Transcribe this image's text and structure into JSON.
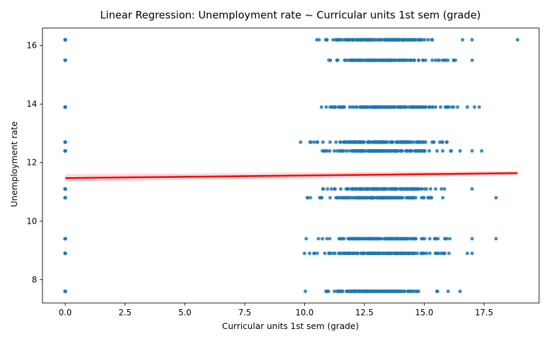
{
  "chart_data": {
    "type": "scatter",
    "title": "Linear Regression: Unemployment rate ~ Curricular units 1st sem (grade)",
    "xlabel": "Curricular units 1st sem (grade)",
    "ylabel": "Unemployment rate",
    "xlim": [
      -0.95,
      19.8
    ],
    "ylim": [
      7.2,
      16.6
    ],
    "xticks": [
      0.0,
      2.5,
      5.0,
      7.5,
      10.0,
      12.5,
      15.0,
      17.5
    ],
    "xtick_labels": [
      "0.0",
      "2.5",
      "5.0",
      "7.5",
      "10.0",
      "12.5",
      "15.0",
      "17.5"
    ],
    "yticks": [
      8,
      10,
      12,
      14,
      16
    ],
    "ytick_labels": [
      "8",
      "10",
      "12",
      "14",
      "16"
    ],
    "grid": false,
    "point_color": "#1f77b4",
    "line_color": "#ff0000",
    "band_color": "#ffc0c0",
    "regression": {
      "x": [
        0.0,
        18.9
      ],
      "y": [
        11.47,
        11.64
      ],
      "ci_low": [
        11.35,
        11.57
      ],
      "ci_high": [
        11.6,
        11.72
      ]
    },
    "series": [
      {
        "name": "y=16.2",
        "y": 16.2,
        "zero_group": true,
        "x_min": 10.3,
        "x_max": 16.3,
        "outliers": [
          16.6,
          17.0,
          18.9
        ]
      },
      {
        "name": "y=15.5",
        "y": 15.5,
        "zero_group": true,
        "x_min": 10.0,
        "x_max": 16.5,
        "outliers": [
          17.0
        ]
      },
      {
        "name": "y=13.9",
        "y": 13.9,
        "zero_group": true,
        "x_min": 10.0,
        "x_max": 16.5,
        "outliers": [
          16.8,
          17.1,
          17.3
        ]
      },
      {
        "name": "y=12.7",
        "y": 12.7,
        "zero_group": true,
        "x_min": 9.8,
        "x_max": 16.5,
        "outliers": []
      },
      {
        "name": "y=12.4",
        "y": 12.4,
        "zero_group": true,
        "x_min": 10.0,
        "x_max": 16.2,
        "outliers": [
          16.5,
          17.0,
          17.4
        ]
      },
      {
        "name": "y=11.1",
        "y": 11.1,
        "zero_group": true,
        "x_min": 10.0,
        "x_max": 16.5,
        "outliers": [
          17.0
        ]
      },
      {
        "name": "y=10.8",
        "y": 10.8,
        "zero_group": true,
        "x_min": 10.0,
        "x_max": 15.9,
        "outliers": [
          18.0
        ]
      },
      {
        "name": "y=9.4",
        "y": 9.4,
        "zero_group": true,
        "x_min": 10.0,
        "x_max": 16.2,
        "outliers": [
          17.0,
          18.0
        ]
      },
      {
        "name": "y=8.9",
        "y": 8.9,
        "zero_group": true,
        "x_min": 10.0,
        "x_max": 16.5,
        "outliers": [
          16.8,
          17.0
        ]
      },
      {
        "name": "y=7.6",
        "y": 7.6,
        "zero_group": true,
        "x_min": 10.0,
        "x_max": 15.6,
        "outliers": [
          16.0,
          16.5
        ]
      }
    ]
  }
}
